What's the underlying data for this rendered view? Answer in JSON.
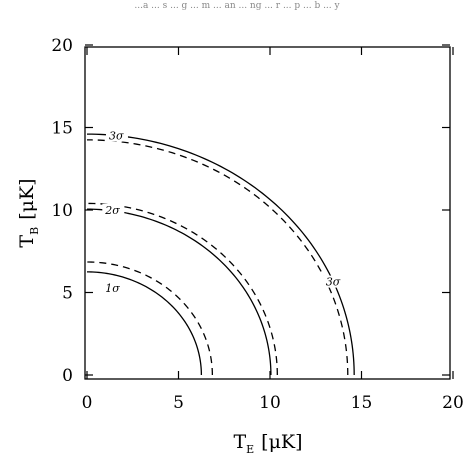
{
  "top_text": "...a ... s ... g ... m ... an ... ng ... r ... p ... b ... y",
  "chart_data": {
    "type": "line",
    "xlim": [
      0,
      20
    ],
    "ylim": [
      0,
      20
    ],
    "xticks": [
      0,
      5,
      10,
      15,
      20
    ],
    "yticks": [
      0,
      5,
      10,
      15,
      20
    ],
    "xlabel": {
      "main": "T",
      "sub": "E",
      "unit": "[μK]"
    },
    "ylabel": {
      "main": "T",
      "sub": "B",
      "unit": "[μK]"
    },
    "grid": false,
    "series": [
      {
        "label": "1σ",
        "style": "solid",
        "radius": 6.25,
        "label_at": [
          1.0,
          5.2
        ]
      },
      {
        "label": "1σ",
        "style": "dashed",
        "radius": 6.85,
        "label_at": null
      },
      {
        "label": "2σ",
        "style": "solid",
        "radius": 10.05,
        "label_at": [
          1.0,
          9.95
        ]
      },
      {
        "label": "2σ",
        "style": "dashed",
        "radius": 10.4,
        "label_at": null
      },
      {
        "label": "3σ",
        "style": "solid",
        "radius": 14.6,
        "label_at": [
          1.2,
          14.45
        ]
      },
      {
        "label": "3σ",
        "style": "dashed",
        "radius": 14.25,
        "label_at": [
          13.05,
          5.6
        ]
      }
    ]
  }
}
